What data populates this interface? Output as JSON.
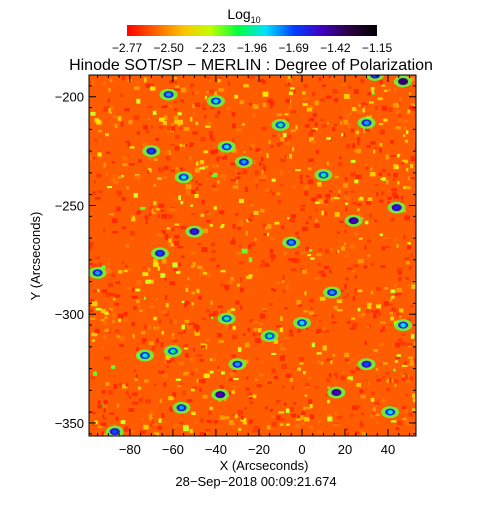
{
  "chart_data": {
    "type": "heatmap",
    "title": "Hinode SOT/SP − MERLIN : Degree of Polarization",
    "xlabel": "X (Arcseconds)",
    "ylabel": "Y (Arcseconds)",
    "xlim": [
      -99,
      53
    ],
    "ylim": [
      -356,
      -190
    ],
    "xticks": [
      -80,
      -60,
      -40,
      -20,
      0,
      20,
      40
    ],
    "yticks": [
      -200,
      -250,
      -300,
      -350
    ],
    "xtick_labels": [
      "−80",
      "−60",
      "−40",
      "−20",
      "0",
      "20",
      "40"
    ],
    "ytick_labels": [
      "−200",
      "−250",
      "−300",
      "−350"
    ],
    "timestamp": "28−Sep−2018 00:09:21.674",
    "colorbar": {
      "label": "Log",
      "label_subscript": "10",
      "range": [
        -2.77,
        -1.15
      ],
      "tick_labels": [
        "−2.77",
        "−2.50",
        "−2.23",
        "−1.96",
        "−1.69",
        "−1.42",
        "−1.15"
      ],
      "colors": [
        "#ff0000",
        "#ff6000",
        "#ffc000",
        "#c0ff00",
        "#00ff40",
        "#00e0ff",
        "#0040ff",
        "#4000c0",
        "#2a0040",
        "#000000"
      ]
    },
    "background_value": -2.6,
    "patches": [
      {
        "x": -87,
        "y": -354,
        "value": -1.7
      },
      {
        "x": -56,
        "y": -343,
        "value": -1.8
      },
      {
        "x": -38,
        "y": -337,
        "value": -1.5
      },
      {
        "x": -30,
        "y": -323,
        "value": -1.8
      },
      {
        "x": 16,
        "y": -336,
        "value": -1.5
      },
      {
        "x": 30,
        "y": -323,
        "value": -1.7
      },
      {
        "x": -73,
        "y": -319,
        "value": -1.9
      },
      {
        "x": -60,
        "y": -317,
        "value": -2.0
      },
      {
        "x": -35,
        "y": -302,
        "value": -2.0
      },
      {
        "x": -50,
        "y": -262,
        "value": -1.6
      },
      {
        "x": -66,
        "y": -272,
        "value": -1.7
      },
      {
        "x": -95,
        "y": -281,
        "value": -1.8
      },
      {
        "x": -55,
        "y": -237,
        "value": -1.9
      },
      {
        "x": -70,
        "y": -225,
        "value": -1.7
      },
      {
        "x": -35,
        "y": -223,
        "value": -1.9
      },
      {
        "x": -27,
        "y": -230,
        "value": -1.8
      },
      {
        "x": -5,
        "y": -267,
        "value": -1.8
      },
      {
        "x": 24,
        "y": -257,
        "value": -1.5
      },
      {
        "x": 44,
        "y": -251,
        "value": -1.6
      },
      {
        "x": -62,
        "y": -199,
        "value": -1.8
      },
      {
        "x": -40,
        "y": -202,
        "value": -1.9
      },
      {
        "x": -10,
        "y": -213,
        "value": -2.0
      },
      {
        "x": 34,
        "y": -190,
        "value": -1.7
      },
      {
        "x": 47,
        "y": -193,
        "value": -1.4
      },
      {
        "x": 30,
        "y": -212,
        "value": -1.8
      },
      {
        "x": 10,
        "y": -236,
        "value": -2.0
      },
      {
        "x": 47,
        "y": -305,
        "value": -1.9
      },
      {
        "x": 0,
        "y": -304,
        "value": -1.9
      },
      {
        "x": -15,
        "y": -310,
        "value": -2.0
      },
      {
        "x": 14,
        "y": -290,
        "value": -1.8
      },
      {
        "x": 41,
        "y": -345,
        "value": -1.9
      }
    ]
  }
}
